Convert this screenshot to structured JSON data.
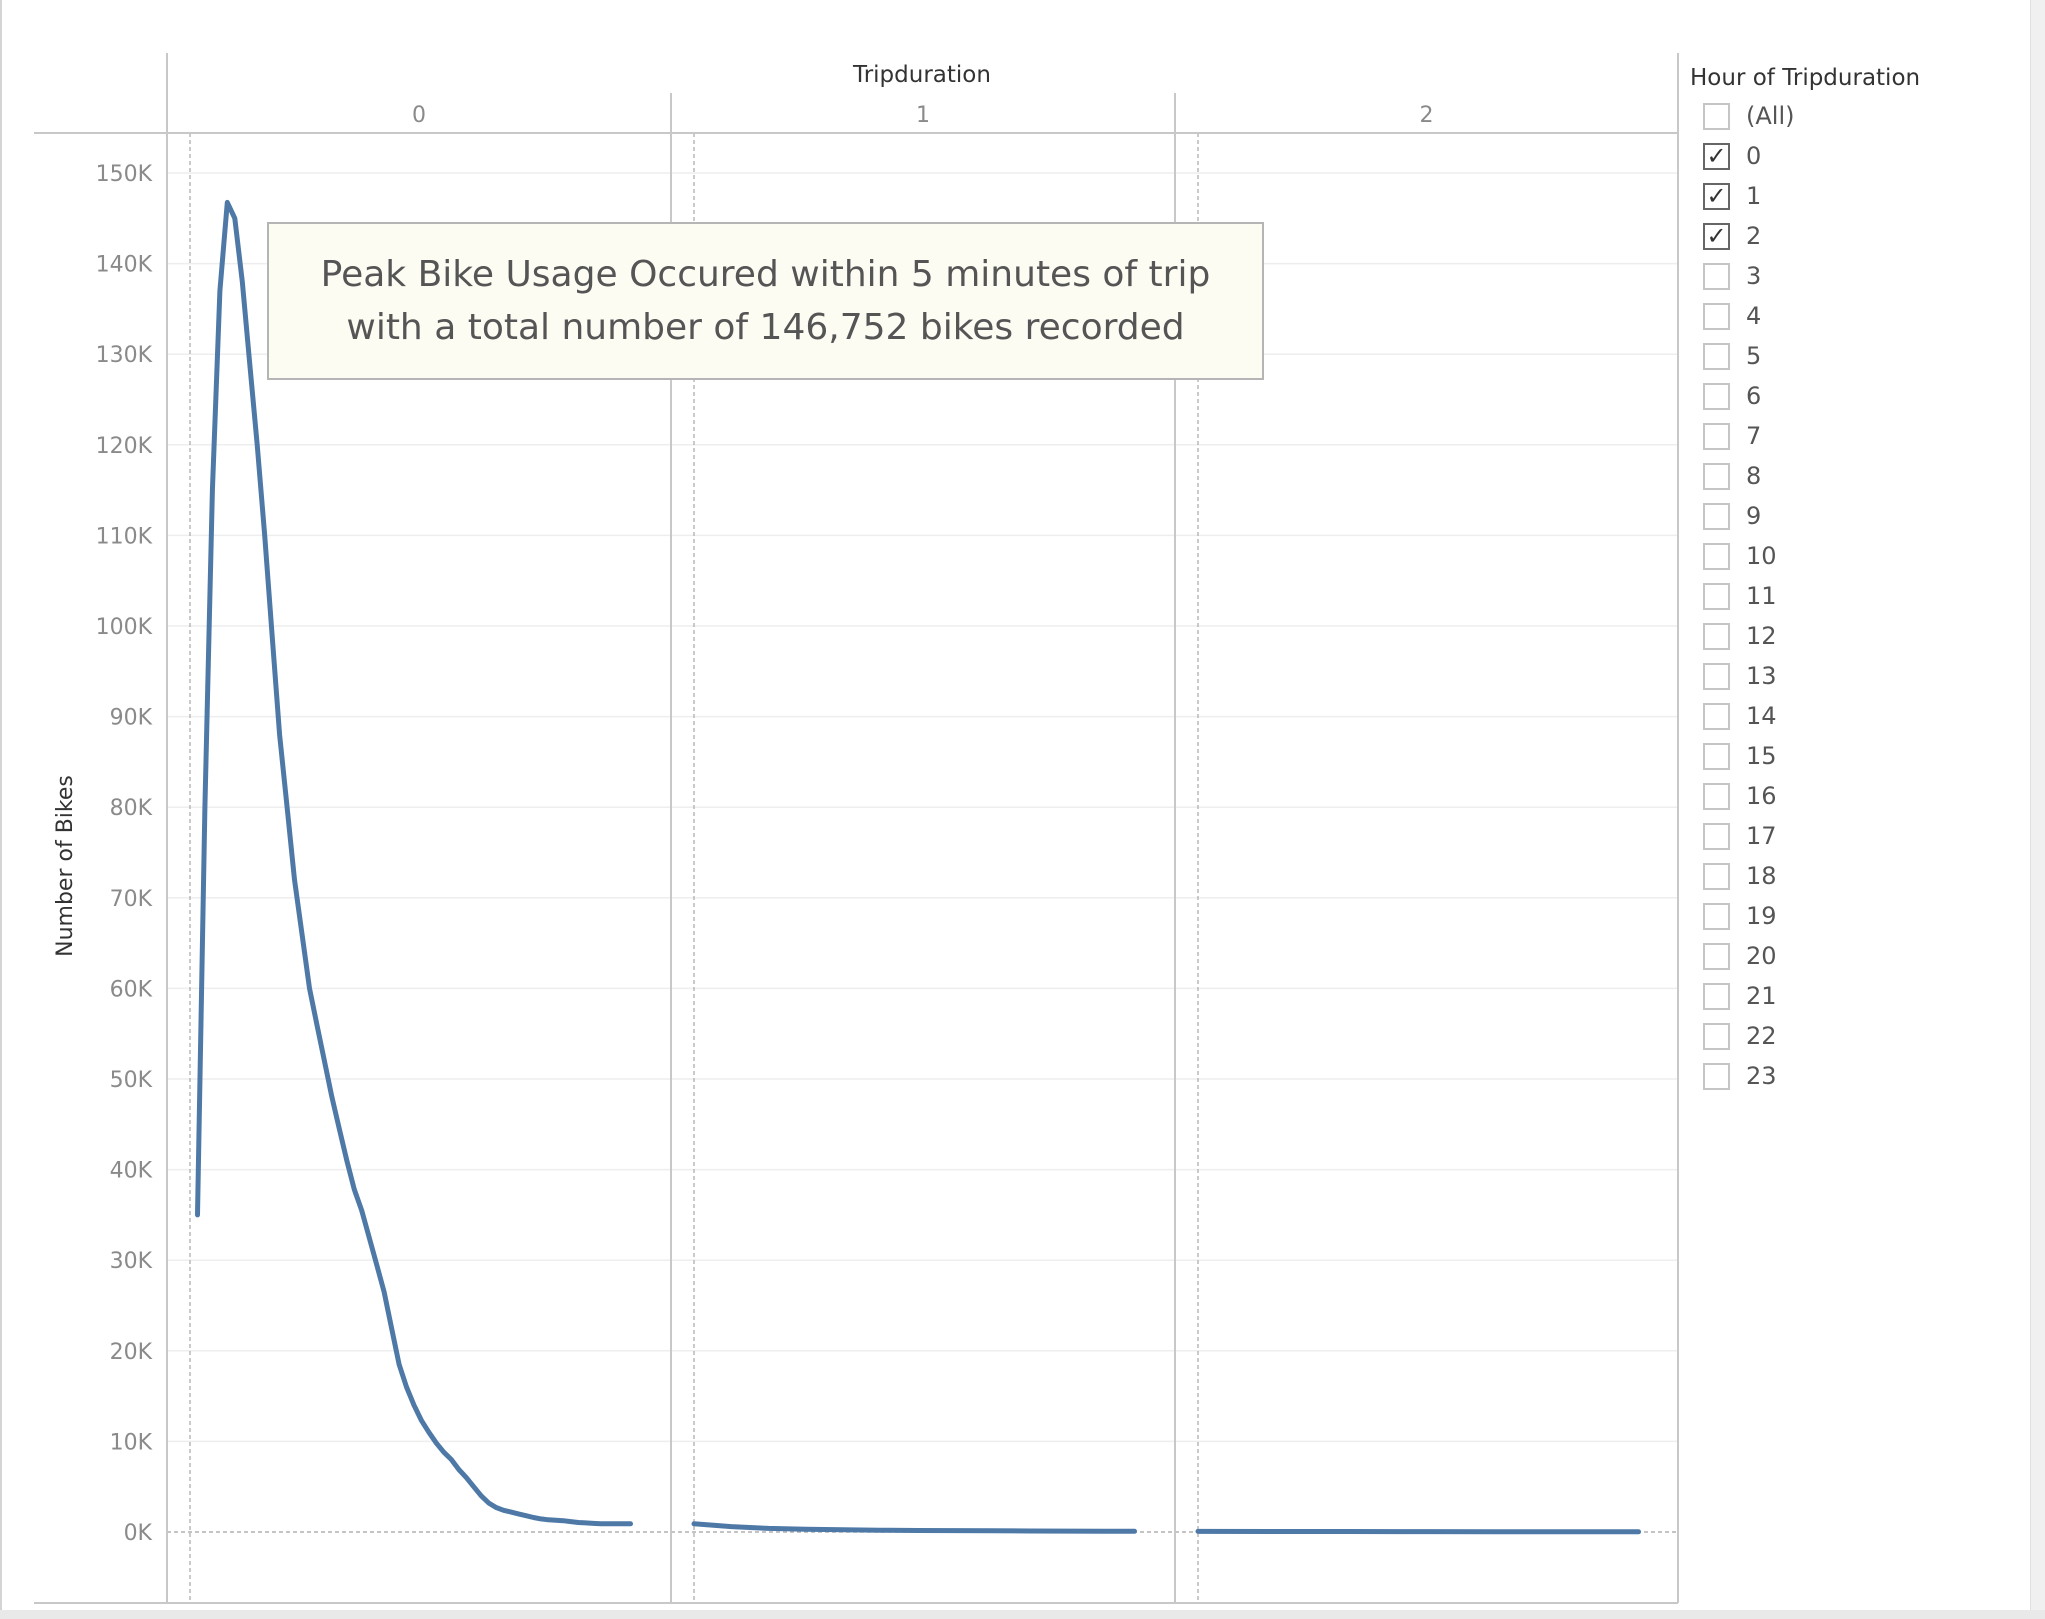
{
  "chart_data": {
    "type": "line",
    "column_header": "Tripduration",
    "ylabel": "Number of Bikes",
    "ylim": [
      -7000,
      152000
    ],
    "y_ticks": [
      0,
      10000,
      20000,
      30000,
      40000,
      50000,
      60000,
      70000,
      80000,
      90000,
      100000,
      110000,
      120000,
      130000,
      140000,
      150000
    ],
    "y_tick_labels": [
      "0K",
      "10K",
      "20K",
      "30K",
      "40K",
      "50K",
      "60K",
      "70K",
      "80K",
      "90K",
      "100K",
      "110K",
      "120K",
      "130K",
      "140K",
      "150K"
    ],
    "x_minute_range": [
      0,
      60
    ],
    "line_color": "#4e79a7",
    "panes": [
      {
        "label": "0",
        "series": {
          "x_minutes": [
            1,
            2,
            3,
            4,
            5,
            6,
            7,
            8,
            9,
            10,
            11,
            12,
            13,
            14,
            15,
            16,
            17,
            18,
            19,
            20,
            21,
            22,
            23,
            24,
            25,
            26,
            27,
            28,
            29,
            30,
            31,
            32,
            33,
            34,
            35,
            36,
            37,
            38,
            39,
            40,
            41,
            42,
            43,
            44,
            45,
            46,
            47,
            48,
            49,
            50,
            51,
            52,
            53,
            54,
            55,
            56,
            57,
            58,
            59
          ],
          "values": [
            35000,
            80000,
            115000,
            137000,
            146752,
            145000,
            138000,
            129000,
            120000,
            110000,
            99000,
            88000,
            80000,
            72000,
            66000,
            60000,
            56000,
            52000,
            48000,
            44500,
            41000,
            37800,
            35500,
            32500,
            29500,
            26500,
            22500,
            18500,
            16000,
            14000,
            12300,
            11000,
            9800,
            8800,
            8000,
            6900,
            6000,
            5000,
            4000,
            3200,
            2700,
            2400,
            2200,
            2000,
            1800,
            1600,
            1450,
            1350,
            1300,
            1250,
            1150,
            1050,
            1000,
            950,
            900,
            900,
            900,
            900,
            900
          ]
        }
      },
      {
        "label": "1",
        "series": {
          "x_minutes": [
            0,
            5,
            10,
            15,
            20,
            25,
            30,
            35,
            40,
            45,
            50,
            55,
            59
          ],
          "values": [
            900,
            600,
            400,
            300,
            250,
            200,
            170,
            150,
            130,
            110,
            100,
            90,
            80
          ]
        }
      },
      {
        "label": "2",
        "series": {
          "x_minutes": [
            0,
            10,
            20,
            30,
            40,
            50,
            59
          ],
          "values": [
            70,
            60,
            50,
            40,
            35,
            30,
            25
          ]
        }
      }
    ],
    "annotation": "Peak Bike Usage Occured within 5 minutes of trip with a total number of 146,752 bikes recorded"
  },
  "filter": {
    "title": "Hour of Tripduration",
    "items": [
      {
        "label": "(All)",
        "checked": false
      },
      {
        "label": "0",
        "checked": true
      },
      {
        "label": "1",
        "checked": true
      },
      {
        "label": "2",
        "checked": true
      },
      {
        "label": "3",
        "checked": false
      },
      {
        "label": "4",
        "checked": false
      },
      {
        "label": "5",
        "checked": false
      },
      {
        "label": "6",
        "checked": false
      },
      {
        "label": "7",
        "checked": false
      },
      {
        "label": "8",
        "checked": false
      },
      {
        "label": "9",
        "checked": false
      },
      {
        "label": "10",
        "checked": false
      },
      {
        "label": "11",
        "checked": false
      },
      {
        "label": "12",
        "checked": false
      },
      {
        "label": "13",
        "checked": false
      },
      {
        "label": "14",
        "checked": false
      },
      {
        "label": "15",
        "checked": false
      },
      {
        "label": "16",
        "checked": false
      },
      {
        "label": "17",
        "checked": false
      },
      {
        "label": "18",
        "checked": false
      },
      {
        "label": "19",
        "checked": false
      },
      {
        "label": "20",
        "checked": false
      },
      {
        "label": "21",
        "checked": false
      },
      {
        "label": "22",
        "checked": false
      },
      {
        "label": "23",
        "checked": false
      }
    ]
  }
}
